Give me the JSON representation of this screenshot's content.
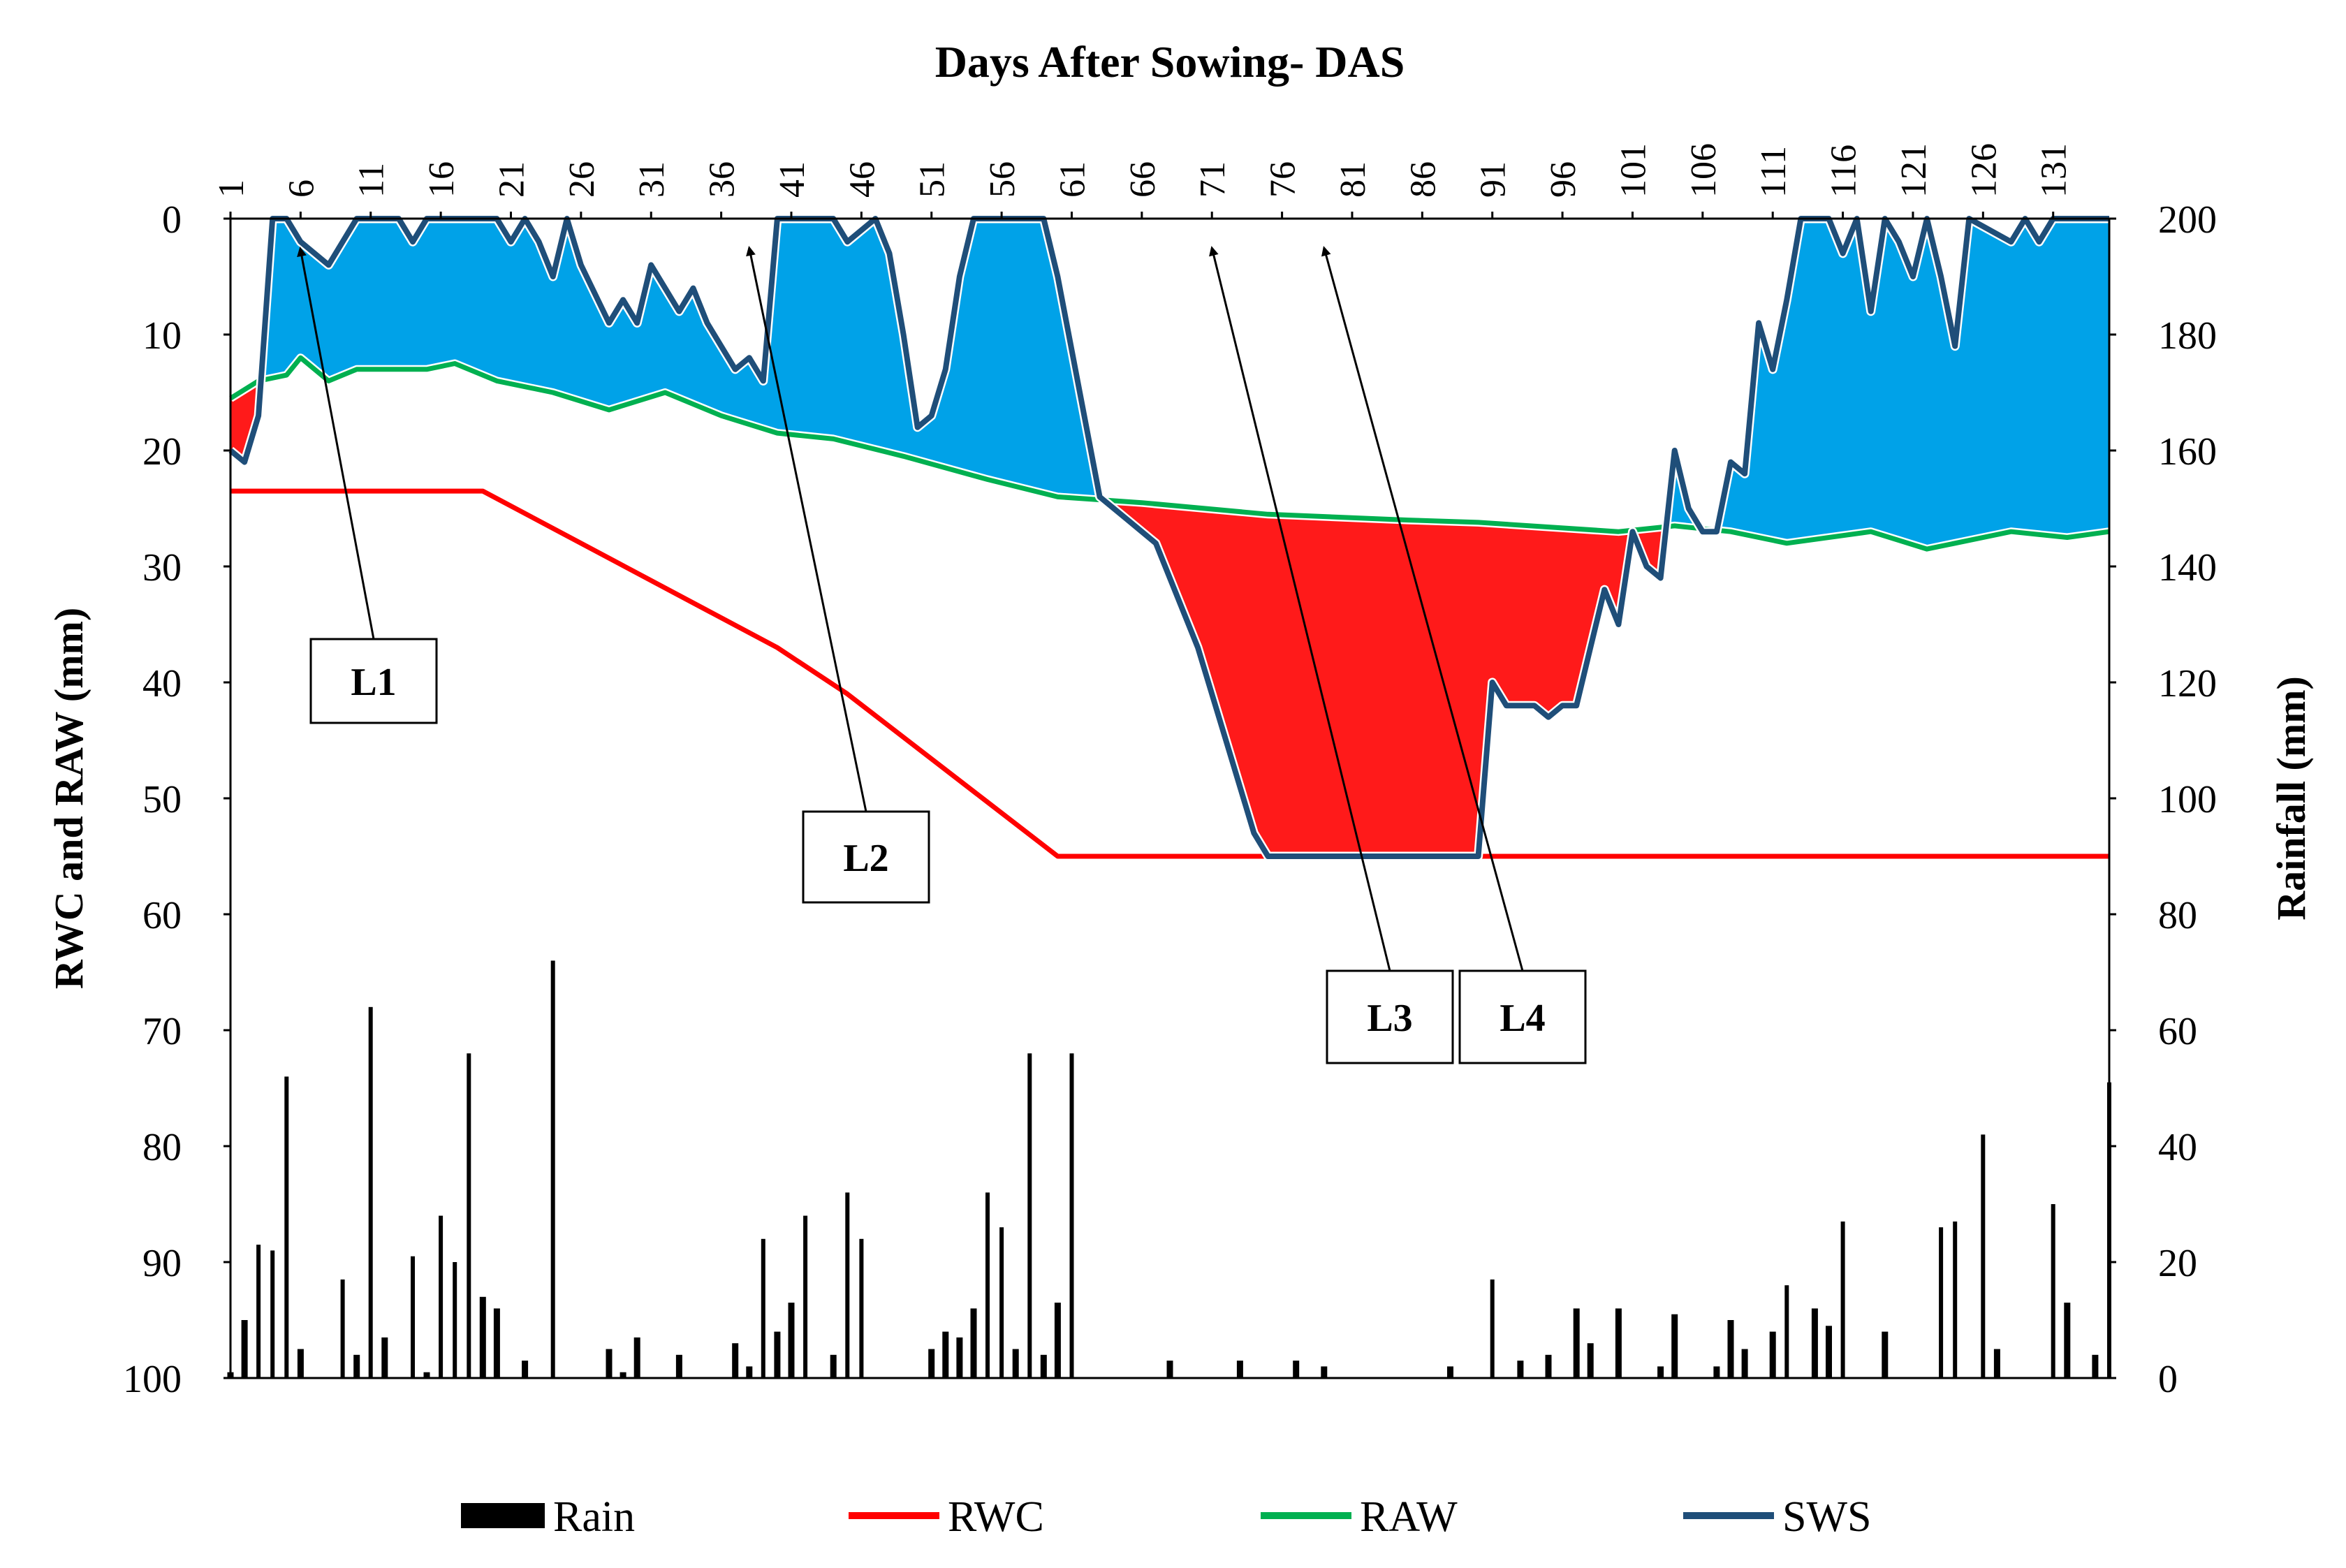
{
  "chart_data": {
    "type": "combo-area-line-bar",
    "title": "Days After Sowing- DAS",
    "xlabel": "Days After Sowing- DAS",
    "ylabel_left": "RWC and RAW (mm)",
    "ylabel_right": "Rainfall (mm)",
    "x_range": [
      1,
      135
    ],
    "x_ticks": [
      1,
      6,
      11,
      16,
      21,
      26,
      31,
      36,
      41,
      46,
      51,
      56,
      61,
      66,
      71,
      76,
      81,
      86,
      91,
      96,
      101,
      106,
      111,
      116,
      121,
      126,
      131
    ],
    "y_left_range": [
      0,
      100
    ],
    "y_left_inverted": true,
    "y_left_ticks": [
      0,
      10,
      20,
      30,
      40,
      50,
      60,
      70,
      80,
      90,
      100
    ],
    "y_right_range": [
      0,
      200
    ],
    "y_right_ticks": [
      0,
      20,
      40,
      60,
      80,
      100,
      120,
      140,
      160,
      180,
      200
    ],
    "legend": {
      "position": "bottom",
      "entries": [
        {
          "name": "Rain",
          "color": "#000000",
          "kind": "bar"
        },
        {
          "name": "RWC",
          "color": "#ff0000",
          "kind": "line"
        },
        {
          "name": "RAW",
          "color": "#00b050",
          "kind": "line"
        },
        {
          "name": "SWS",
          "color": "#1f4e79",
          "kind": "line"
        }
      ]
    },
    "fill_colors": {
      "surplus": "#00a2e8",
      "deficit": "#ff1a1a"
    },
    "series": [
      {
        "name": "RWC",
        "points": [
          [
            1,
            23.5
          ],
          [
            19,
            23.5
          ],
          [
            40,
            37
          ],
          [
            45,
            41
          ],
          [
            60,
            55
          ],
          [
            135,
            55
          ]
        ]
      },
      {
        "name": "RAW",
        "points": [
          [
            1,
            15.5
          ],
          [
            3,
            14
          ],
          [
            5,
            13.5
          ],
          [
            6,
            12
          ],
          [
            8,
            14
          ],
          [
            10,
            13
          ],
          [
            15,
            13
          ],
          [
            17,
            12.5
          ],
          [
            20,
            14
          ],
          [
            24,
            15
          ],
          [
            28,
            16.5
          ],
          [
            32,
            15
          ],
          [
            36,
            17
          ],
          [
            40,
            18.5
          ],
          [
            44,
            19
          ],
          [
            49,
            20.5
          ],
          [
            55,
            22.5
          ],
          [
            60,
            24
          ],
          [
            66,
            24.5
          ],
          [
            75,
            25.5
          ],
          [
            85,
            26
          ],
          [
            90,
            26.2
          ],
          [
            100,
            27
          ],
          [
            104,
            26.5
          ],
          [
            108,
            27
          ],
          [
            112,
            28
          ],
          [
            118,
            27
          ],
          [
            122,
            28.5
          ],
          [
            128,
            27
          ],
          [
            132,
            27.5
          ],
          [
            135,
            27
          ]
        ]
      },
      {
        "name": "SWS",
        "points": [
          [
            1,
            20
          ],
          [
            2,
            21
          ],
          [
            3,
            17
          ],
          [
            4,
            0
          ],
          [
            5,
            0
          ],
          [
            6,
            2
          ],
          [
            8,
            4
          ],
          [
            10,
            0
          ],
          [
            13,
            0
          ],
          [
            14,
            2
          ],
          [
            15,
            0
          ],
          [
            18,
            0
          ],
          [
            20,
            0
          ],
          [
            21,
            2
          ],
          [
            22,
            0
          ],
          [
            23,
            2
          ],
          [
            24,
            5
          ],
          [
            25,
            0
          ],
          [
            26,
            4
          ],
          [
            28,
            9
          ],
          [
            29,
            7
          ],
          [
            30,
            9
          ],
          [
            31,
            4
          ],
          [
            32,
            6
          ],
          [
            33,
            8
          ],
          [
            34,
            6
          ],
          [
            35,
            9
          ],
          [
            37,
            13
          ],
          [
            38,
            12
          ],
          [
            39,
            14
          ],
          [
            40,
            0
          ],
          [
            44,
            0
          ],
          [
            45,
            2
          ],
          [
            47,
            0
          ],
          [
            48,
            3
          ],
          [
            49,
            10
          ],
          [
            50,
            18
          ],
          [
            51,
            17
          ],
          [
            52,
            13
          ],
          [
            53,
            5
          ],
          [
            54,
            0
          ],
          [
            59,
            0
          ],
          [
            60,
            5
          ],
          [
            63,
            24
          ],
          [
            65,
            26
          ],
          [
            67,
            28
          ],
          [
            70,
            37
          ],
          [
            72,
            45
          ],
          [
            74,
            53
          ],
          [
            75,
            55
          ],
          [
            90,
            55
          ],
          [
            91,
            40
          ],
          [
            92,
            42
          ],
          [
            94,
            42
          ],
          [
            95,
            43
          ],
          [
            96,
            42
          ],
          [
            97,
            42
          ],
          [
            98,
            37
          ],
          [
            99,
            32
          ],
          [
            100,
            35
          ],
          [
            101,
            27
          ],
          [
            102,
            30
          ],
          [
            103,
            31
          ],
          [
            104,
            20
          ],
          [
            105,
            25
          ],
          [
            106,
            27
          ],
          [
            107,
            27
          ],
          [
            108,
            21
          ],
          [
            109,
            22
          ],
          [
            110,
            9
          ],
          [
            111,
            13
          ],
          [
            112,
            7
          ],
          [
            113,
            0
          ],
          [
            115,
            0
          ],
          [
            116,
            3
          ],
          [
            117,
            0
          ],
          [
            118,
            8
          ],
          [
            119,
            0
          ],
          [
            120,
            2
          ],
          [
            121,
            5
          ],
          [
            122,
            0
          ],
          [
            123,
            5
          ],
          [
            124,
            11
          ],
          [
            125,
            0
          ],
          [
            128,
            2
          ],
          [
            129,
            0
          ],
          [
            130,
            2
          ],
          [
            131,
            0
          ],
          [
            135,
            0
          ]
        ]
      },
      {
        "name": "Rain",
        "points": [
          [
            1,
            1
          ],
          [
            2,
            10
          ],
          [
            3,
            23
          ],
          [
            4,
            22
          ],
          [
            5,
            52
          ],
          [
            6,
            5
          ],
          [
            9,
            17
          ],
          [
            10,
            4
          ],
          [
            11,
            64
          ],
          [
            12,
            7
          ],
          [
            14,
            21
          ],
          [
            15,
            1
          ],
          [
            16,
            28
          ],
          [
            17,
            20
          ],
          [
            18,
            56
          ],
          [
            19,
            14
          ],
          [
            20,
            12
          ],
          [
            22,
            3
          ],
          [
            24,
            72
          ],
          [
            28,
            5
          ],
          [
            29,
            1
          ],
          [
            30,
            7
          ],
          [
            33,
            4
          ],
          [
            37,
            6
          ],
          [
            38,
            2
          ],
          [
            39,
            24
          ],
          [
            40,
            8
          ],
          [
            41,
            13
          ],
          [
            42,
            28
          ],
          [
            44,
            4
          ],
          [
            45,
            32
          ],
          [
            46,
            24
          ],
          [
            51,
            5
          ],
          [
            52,
            8
          ],
          [
            53,
            7
          ],
          [
            54,
            12
          ],
          [
            55,
            32
          ],
          [
            56,
            26
          ],
          [
            57,
            5
          ],
          [
            58,
            56
          ],
          [
            59,
            4
          ],
          [
            60,
            13
          ],
          [
            61,
            56
          ],
          [
            68,
            3
          ],
          [
            73,
            3
          ],
          [
            77,
            3
          ],
          [
            79,
            2
          ],
          [
            88,
            2
          ],
          [
            91,
            17
          ],
          [
            93,
            3
          ],
          [
            95,
            4
          ],
          [
            97,
            12
          ],
          [
            98,
            6
          ],
          [
            100,
            12
          ],
          [
            103,
            2
          ],
          [
            104,
            11
          ],
          [
            107,
            2
          ],
          [
            108,
            10
          ],
          [
            109,
            5
          ],
          [
            111,
            8
          ],
          [
            112,
            16
          ],
          [
            114,
            12
          ],
          [
            115,
            9
          ],
          [
            116,
            27
          ],
          [
            119,
            8
          ],
          [
            123,
            26
          ],
          [
            124,
            27
          ],
          [
            126,
            42
          ],
          [
            127,
            5
          ],
          [
            131,
            30
          ],
          [
            132,
            13
          ],
          [
            134,
            4
          ],
          [
            135,
            51
          ]
        ]
      }
    ],
    "annotations": [
      {
        "label": "L1",
        "arrow_target_das": 6
      },
      {
        "label": "L2",
        "arrow_target_das": 38
      },
      {
        "label": "L3",
        "arrow_target_das": 71
      },
      {
        "label": "L4",
        "arrow_target_das": 79
      }
    ]
  }
}
